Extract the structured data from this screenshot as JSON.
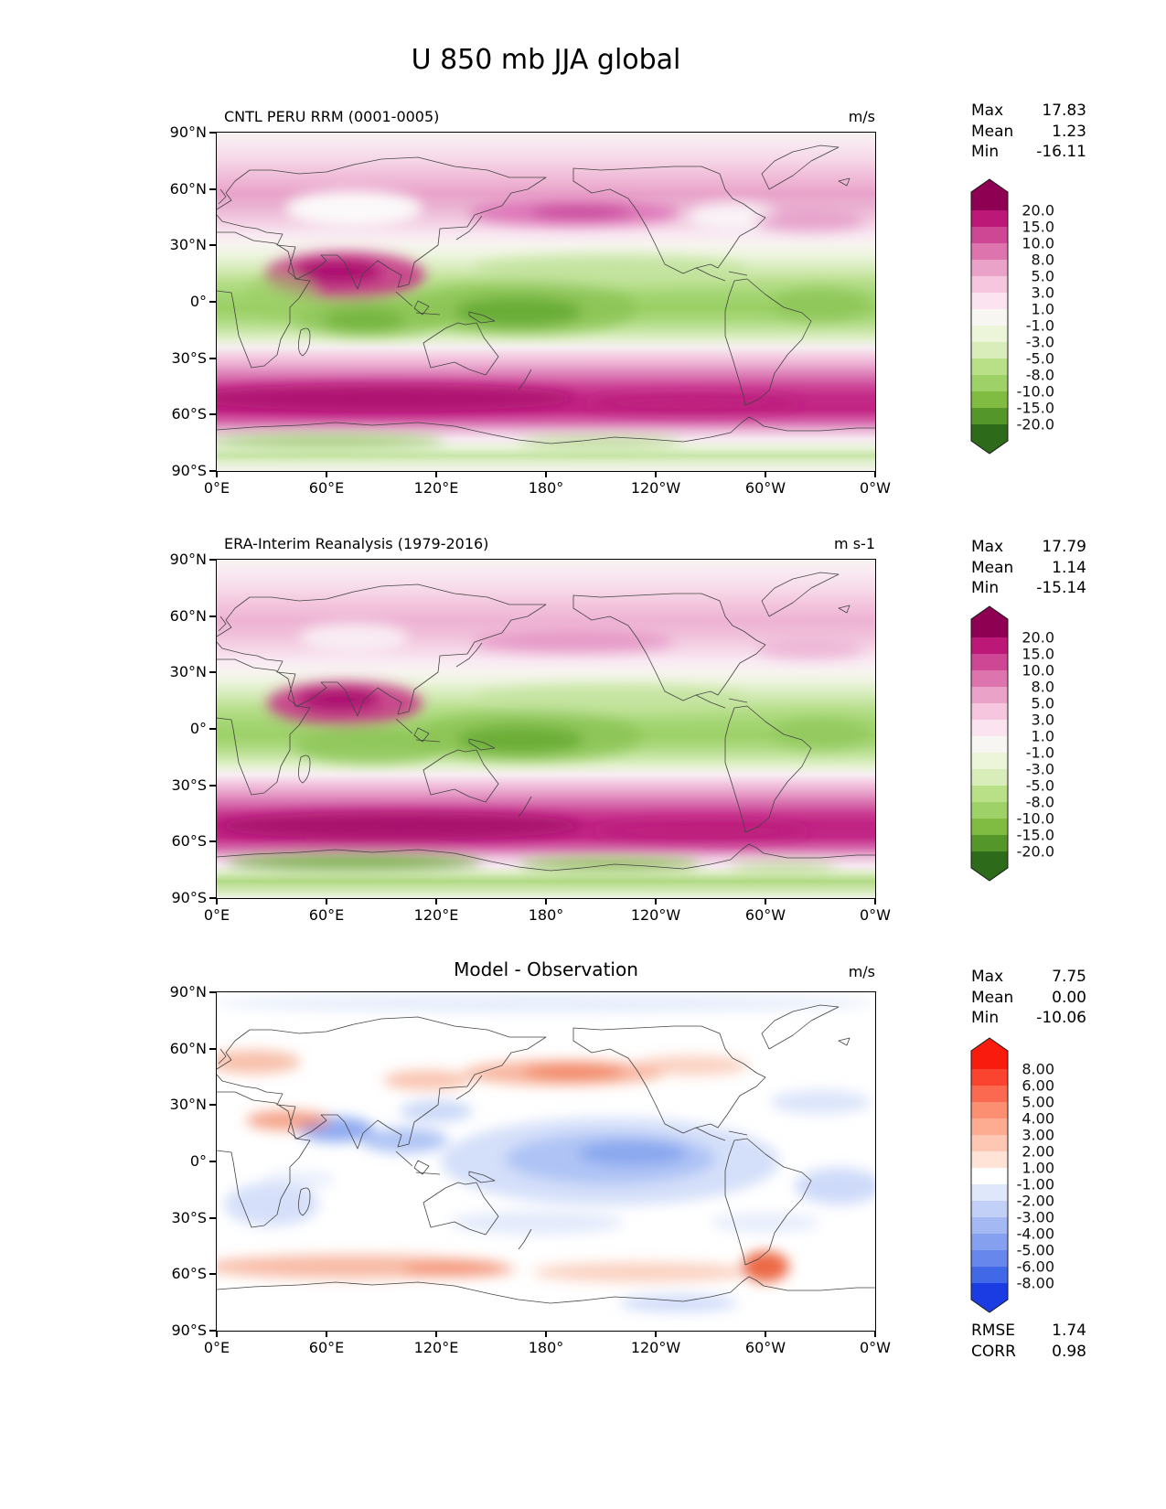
{
  "page": {
    "title": "U 850 mb JJA global"
  },
  "axes": {
    "lon_ticks": [
      "0°E",
      "60°E",
      "120°E",
      "180°",
      "120°W",
      "60°W",
      "0°W"
    ],
    "lat_ticks": [
      "90°N",
      "60°N",
      "30°N",
      "0°",
      "30°S",
      "60°S",
      "90°S"
    ]
  },
  "panels": [
    {
      "id": "model",
      "title": "CNTL PERU RRM (0001-0005)",
      "units": "m/s",
      "stats": [
        {
          "label": "Max",
          "value": "17.83"
        },
        {
          "label": "Mean",
          "value": "1.23"
        },
        {
          "label": "Min",
          "value": "-16.11"
        }
      ],
      "colorbar": {
        "labels": [
          "20.0",
          "15.0",
          "10.0",
          "8.0",
          "5.0",
          "3.0",
          "1.0",
          "-1.0",
          "-3.0",
          "-5.0",
          "-8.0",
          "-10.0",
          "-15.0",
          "-20.0"
        ],
        "colors": [
          "#8e0152",
          "#bb1878",
          "#ce4795",
          "#dd74ae",
          "#eba2c9",
          "#f5c6de",
          "#fbe3ef",
          "#f7f6f3",
          "#ecf5da",
          "#d9edbb",
          "#b9e087",
          "#9ed268",
          "#7fbc41",
          "#55962a",
          "#2d6a1a"
        ]
      }
    },
    {
      "id": "obs",
      "title": "ERA-Interim Reanalysis (1979-2016)",
      "units": "m s-1",
      "stats": [
        {
          "label": "Max",
          "value": "17.79"
        },
        {
          "label": "Mean",
          "value": "1.14"
        },
        {
          "label": "Min",
          "value": "-15.14"
        }
      ],
      "colorbar": {
        "labels": [
          "20.0",
          "15.0",
          "10.0",
          "8.0",
          "5.0",
          "3.0",
          "1.0",
          "-1.0",
          "-3.0",
          "-5.0",
          "-8.0",
          "-10.0",
          "-15.0",
          "-20.0"
        ],
        "colors": [
          "#8e0152",
          "#bb1878",
          "#ce4795",
          "#dd74ae",
          "#eba2c9",
          "#f5c6de",
          "#fbe3ef",
          "#f7f6f3",
          "#ecf5da",
          "#d9edbb",
          "#b9e087",
          "#9ed268",
          "#7fbc41",
          "#55962a",
          "#2d6a1a"
        ]
      }
    },
    {
      "id": "diff",
      "title": "Model - Observation",
      "units": "m/s",
      "stats": [
        {
          "label": "Max",
          "value": "7.75"
        },
        {
          "label": "Mean",
          "value": "0.00"
        },
        {
          "label": "Min",
          "value": "-10.06"
        }
      ],
      "extra_stats": [
        {
          "label": "RMSE",
          "value": "1.74"
        },
        {
          "label": "CORR",
          "value": "0.98"
        }
      ],
      "colorbar": {
        "labels": [
          "8.00",
          "6.00",
          "5.00",
          "4.00",
          "3.00",
          "2.00",
          "1.00",
          "-1.00",
          "-2.00",
          "-3.00",
          "-4.00",
          "-5.00",
          "-6.00",
          "-8.00"
        ],
        "colors": [
          "#fa1b0f",
          "#fb4430",
          "#fb6a50",
          "#fc8e71",
          "#fdac92",
          "#fec7b3",
          "#fee3d6",
          "#ffffff",
          "#dfe7fb",
          "#c2d0f8",
          "#a4b8f4",
          "#86a0f0",
          "#6787ec",
          "#4168e7",
          "#1c3ce3"
        ]
      }
    }
  ],
  "chart_data": {
    "type": "heatmap",
    "subtype": "filled-contour world maps, 3 stacked panels",
    "figure_title": "U 850 mb JJA global",
    "variable": "Zonal wind U at 850 mb, JJA climatology, global",
    "x_axis": {
      "label": "longitude",
      "ticks": [
        "0°E",
        "60°E",
        "120°E",
        "180°",
        "120°W",
        "60°W",
        "0°W"
      ],
      "range_deg": [
        0,
        360
      ]
    },
    "y_axis": {
      "label": "latitude",
      "ticks": [
        "90°N",
        "60°N",
        "30°N",
        "0°",
        "30°S",
        "60°S",
        "90°S"
      ],
      "range_deg": [
        -90,
        90
      ]
    },
    "panels": [
      {
        "title": "CNTL PERU RRM (0001-0005)",
        "units": "m/s",
        "max": 17.83,
        "mean": 1.23,
        "min": -16.11,
        "contour_levels": [
          -20,
          -15,
          -10,
          -8,
          -5,
          -3,
          -1,
          1,
          3,
          5,
          8,
          10,
          15,
          20
        ],
        "colormap": "PiYG reversed: magenta/pink positive (westerly), green negative (easterly), extend both",
        "pattern": "Pink NH midlatitude westerlies; strong magenta Somali/monsoon jet over Arabian Sea-India; green tropical easterlies over Pacific, Indian and Atlantic oceans; intense magenta Southern Hemisphere westerly belt 35S-60S; green band near Antarctic coast"
      },
      {
        "title": "ERA-Interim Reanalysis (1979-2016)",
        "units": "m s-1",
        "max": 17.79,
        "mean": 1.14,
        "min": -15.14,
        "contour_levels": [
          -20,
          -15,
          -10,
          -8,
          -5,
          -3,
          -1,
          1,
          3,
          5,
          8,
          10,
          15,
          20
        ],
        "colormap": "PiYG reversed: magenta/pink positive (westerly), green negative (easterly), extend both",
        "pattern": "Same structure as model panel: magenta Somali jet, green tropical easterlies, magenta SH westerly belt; stronger green easterlies along Antarctic coastline"
      },
      {
        "title": "Model - Observation",
        "units": "m/s",
        "max": 7.75,
        "mean": 0.0,
        "min": -10.06,
        "rmse": 1.74,
        "corr": 0.98,
        "contour_levels": [
          -8,
          -6,
          -5,
          -4,
          -3,
          -2,
          -1,
          1,
          2,
          3,
          4,
          5,
          6,
          8
        ],
        "colormap": "red positive bias / blue negative bias, white near zero, extend both",
        "pattern": "Mostly white (small bias); broad blue negative bias over tropical central Pacific and Arabian Sea/Bay of Bengal; red positive bias along ~45N North Pacific, over Europe/East Asia, along 50S-60S belt and near southern tip of South America"
      }
    ]
  }
}
